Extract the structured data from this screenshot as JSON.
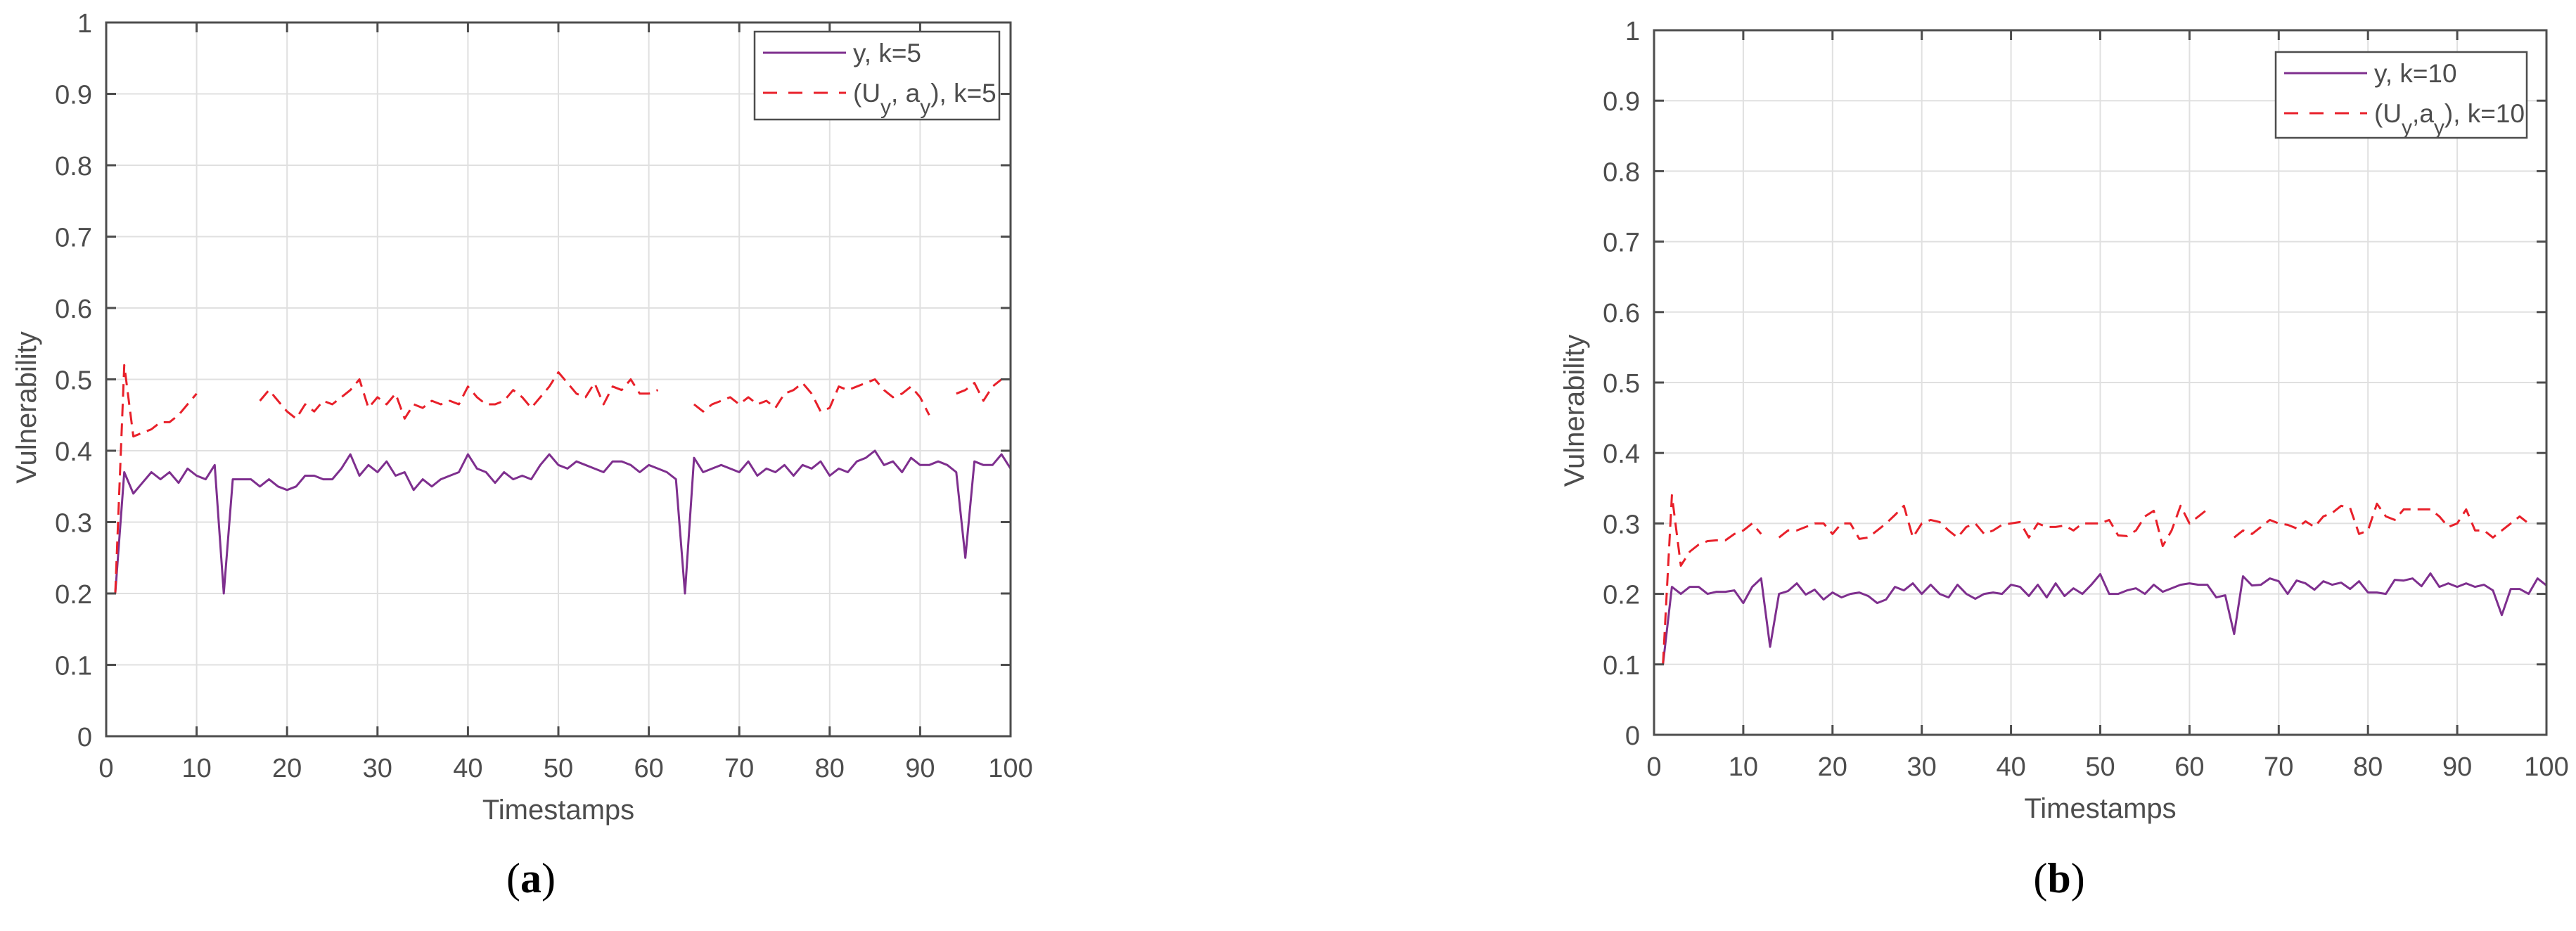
{
  "figure": {
    "panels": [
      {
        "id": "a",
        "caption_open": "(",
        "caption_letter": "a",
        "caption_close": ")"
      },
      {
        "id": "b",
        "caption_open": "(",
        "caption_letter": "b",
        "caption_close": ")"
      }
    ]
  },
  "colors": {
    "series_y": "#7E2F8E",
    "series_uy_ay": "#E8202A",
    "axis": "#4D4D4D",
    "grid": "#E0E0E0"
  },
  "chart_data": [
    {
      "type": "line",
      "panel": "a",
      "title": "",
      "xlabel": "Timestamps",
      "ylabel": "Vulnerability",
      "xlim": [
        0,
        100
      ],
      "ylim": [
        0,
        1
      ],
      "xticks": [
        "0",
        "10",
        "20",
        "30",
        "40",
        "50",
        "60",
        "70",
        "80",
        "90",
        "100"
      ],
      "yticks": [
        "0",
        "0.1",
        "0.2",
        "0.3",
        "0.4",
        "0.5",
        "0.6",
        "0.7",
        "0.8",
        "0.9",
        "1"
      ],
      "grid": true,
      "legend_position": "top-right",
      "legend": [
        "y, k=5",
        "(U_y, a_y), k=5"
      ],
      "series": [
        {
          "name": "y, k=5",
          "style": "solid",
          "x_start": 1,
          "values": [
            0.2,
            0.37,
            0.34,
            0.355,
            0.37,
            0.36,
            0.37,
            0.355,
            0.375,
            0.365,
            0.36,
            0.38,
            0.2,
            0.36,
            0.36,
            0.36,
            0.35,
            0.36,
            0.35,
            0.345,
            0.35,
            0.365,
            0.365,
            0.36,
            0.36,
            0.375,
            0.395,
            0.365,
            0.38,
            0.37,
            0.385,
            0.365,
            0.37,
            0.345,
            0.36,
            0.35,
            0.36,
            0.365,
            0.37,
            0.395,
            0.375,
            0.37,
            0.355,
            0.37,
            0.36,
            0.365,
            0.36,
            0.38,
            0.395,
            0.38,
            0.375,
            0.385,
            0.38,
            0.375,
            0.37,
            0.385,
            0.385,
            0.38,
            0.37,
            0.38,
            0.375,
            0.37,
            0.36,
            0.2,
            0.39,
            0.37,
            0.375,
            0.38,
            0.375,
            0.37,
            0.385,
            0.365,
            0.375,
            0.37,
            0.38,
            0.365,
            0.38,
            0.375,
            0.385,
            0.365,
            0.375,
            0.37,
            0.385,
            0.39,
            0.4,
            0.38,
            0.385,
            0.37,
            0.39,
            0.38,
            0.38,
            0.385,
            0.38,
            0.37,
            0.25,
            0.385,
            0.38,
            0.38,
            0.395,
            0.375
          ],
          "color": "#7E2F8E"
        },
        {
          "name": "(U_y, a_y), k=5",
          "style": "dashed",
          "x_start": 1,
          "values": [
            0.2,
            0.52,
            0.42,
            0.425,
            0.43,
            0.44,
            0.44,
            0.45,
            0.465,
            0.48,
            null,
            null,
            null,
            null,
            null,
            null,
            0.47,
            0.485,
            0.47,
            0.455,
            0.445,
            0.465,
            0.455,
            0.47,
            0.465,
            0.475,
            0.485,
            0.5,
            0.46,
            0.475,
            0.465,
            0.48,
            0.445,
            0.465,
            0.46,
            0.47,
            0.465,
            0.47,
            0.465,
            0.49,
            0.475,
            0.465,
            0.465,
            0.47,
            0.485,
            0.475,
            0.46,
            0.475,
            0.49,
            0.51,
            0.495,
            0.48,
            0.475,
            0.495,
            0.465,
            0.49,
            0.485,
            0.5,
            0.48,
            0.48,
            0.485,
            null,
            null,
            null,
            0.465,
            0.455,
            0.465,
            0.47,
            0.475,
            0.465,
            0.475,
            0.465,
            0.47,
            0.46,
            0.48,
            0.485,
            0.495,
            0.48,
            0.455,
            0.46,
            0.49,
            0.485,
            0.49,
            0.495,
            0.5,
            0.485,
            0.475,
            0.48,
            0.49,
            0.475,
            0.45,
            null,
            null,
            0.48,
            0.485,
            0.495,
            0.47,
            0.49,
            0.5
          ],
          "color": "#E8202A"
        }
      ]
    },
    {
      "type": "line",
      "panel": "b",
      "title": "",
      "xlabel": "Timestamps",
      "ylabel": "Vulnerability",
      "xlim": [
        0,
        100
      ],
      "ylim": [
        0,
        1
      ],
      "xticks": [
        "0",
        "10",
        "20",
        "30",
        "40",
        "50",
        "60",
        "70",
        "80",
        "90",
        "100"
      ],
      "yticks": [
        "0",
        "0.1",
        "0.2",
        "0.3",
        "0.4",
        "0.5",
        "0.6",
        "0.7",
        "0.8",
        "0.9",
        "1"
      ],
      "grid": true,
      "legend_position": "top-right",
      "legend": [
        "y, k=10",
        "(U_y,a_y), k=10"
      ],
      "series": [
        {
          "name": "y, k=10",
          "style": "solid",
          "x_start": 1,
          "values": [
            0.1,
            0.21,
            0.2,
            0.21,
            0.21,
            0.2,
            0.203,
            0.203,
            0.205,
            0.187,
            0.21,
            0.222,
            0.125,
            0.2,
            0.204,
            0.215,
            0.199,
            0.206,
            0.192,
            0.202,
            0.195,
            0.2,
            0.202,
            0.197,
            0.187,
            0.192,
            0.21,
            0.205,
            0.215,
            0.2,
            0.213,
            0.2,
            0.195,
            0.213,
            0.2,
            0.193,
            0.2,
            0.202,
            0.2,
            0.213,
            0.21,
            0.197,
            0.213,
            0.195,
            0.215,
            0.197,
            0.208,
            0.2,
            0.213,
            0.228,
            0.2,
            0.2,
            0.205,
            0.208,
            0.2,
            0.213,
            0.203,
            0.208,
            0.213,
            0.215,
            0.213,
            0.213,
            0.195,
            0.198,
            0.143,
            0.225,
            0.212,
            0.213,
            0.222,
            0.218,
            0.2,
            0.219,
            0.215,
            0.206,
            0.218,
            0.213,
            0.216,
            0.207,
            0.218,
            0.202,
            0.202,
            0.2,
            0.22,
            0.219,
            0.222,
            0.211,
            0.229,
            0.21,
            0.215,
            0.21,
            0.215,
            0.21,
            0.213,
            0.205,
            0.17,
            0.207,
            0.207,
            0.2,
            0.222,
            0.212
          ],
          "color": "#7E2F8E"
        },
        {
          "name": "(U_y,a_y), k=10",
          "style": "dashed",
          "x_start": 1,
          "values": [
            0.1,
            0.34,
            0.24,
            0.26,
            0.27,
            0.275,
            0.276,
            0.276,
            0.285,
            0.29,
            0.3,
            0.285,
            null,
            0.28,
            0.29,
            0.29,
            0.295,
            0.3,
            0.3,
            0.285,
            0.3,
            0.3,
            0.278,
            0.28,
            0.29,
            0.3,
            0.312,
            0.325,
            0.28,
            0.3,
            0.305,
            0.302,
            0.29,
            0.28,
            0.295,
            0.3,
            0.285,
            0.29,
            0.298,
            0.3,
            0.302,
            0.28,
            0.3,
            0.295,
            0.295,
            0.297,
            0.29,
            0.3,
            0.3,
            0.3,
            0.305,
            0.283,
            0.282,
            0.29,
            0.31,
            0.318,
            0.268,
            0.29,
            0.325,
            0.3,
            0.31,
            0.32,
            null,
            null,
            0.28,
            0.29,
            0.285,
            0.295,
            0.305,
            0.3,
            0.298,
            0.293,
            0.303,
            0.295,
            0.31,
            0.315,
            0.325,
            0.322,
            0.285,
            0.29,
            0.328,
            0.31,
            0.305,
            0.32,
            0.32,
            0.32,
            0.32,
            0.31,
            0.295,
            0.3,
            0.32,
            0.29,
            0.29,
            0.28,
            0.29,
            0.3,
            0.31,
            0.3,
            null,
            0.32
          ],
          "color": "#E8202A"
        }
      ]
    }
  ]
}
